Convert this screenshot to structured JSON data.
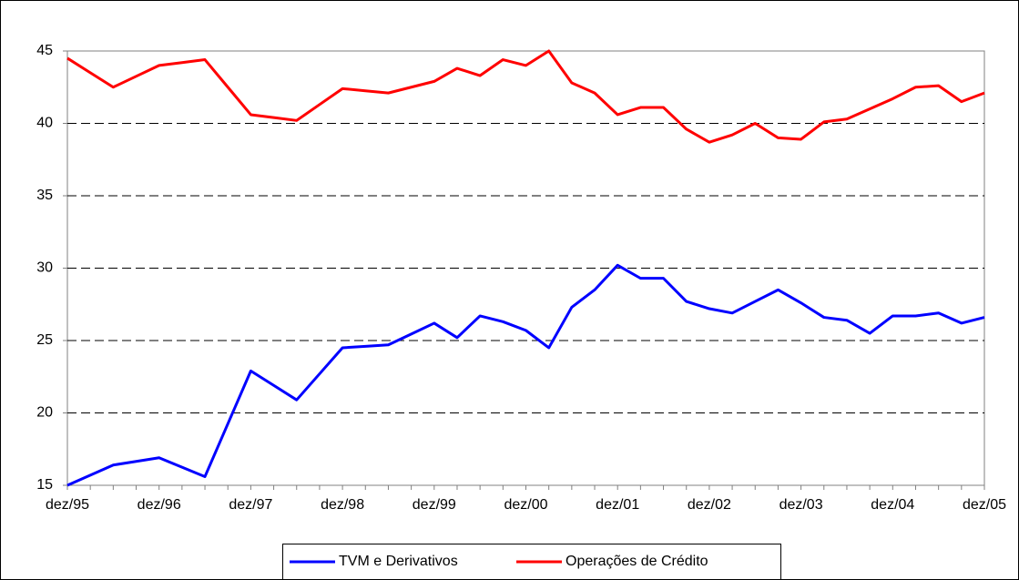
{
  "chart_data": {
    "type": "line",
    "categories": [
      "dez/95",
      null,
      null,
      null,
      "dez/96",
      null,
      null,
      null,
      "dez/97",
      null,
      null,
      null,
      "dez/98",
      null,
      null,
      null,
      "dez/99",
      null,
      null,
      null,
      "dez/00",
      null,
      null,
      null,
      "dez/01",
      null,
      null,
      null,
      "dez/02",
      null,
      null,
      null,
      "dez/03",
      null,
      null,
      null,
      "dez/04",
      null,
      null,
      null,
      "dez/05"
    ],
    "series": [
      {
        "name": "TVM e Derivativos",
        "color": "#0000ff",
        "values": [
          15,
          15.7,
          16.4,
          16.65,
          16.9,
          16.25,
          15.6,
          19.25,
          22.9,
          21.9,
          20.9,
          22.7,
          24.5,
          24.6,
          24.7,
          25.45,
          26.2,
          25.2,
          26.7,
          26.3,
          25.7,
          24.5,
          27.3,
          28.5,
          30.2,
          29.3,
          29.3,
          27.7,
          27.2,
          26.9,
          27.7,
          28.5,
          27.6,
          26.6,
          26.4,
          25.5,
          26.7,
          26.7,
          26.9,
          26.2,
          26.6
        ]
      },
      {
        "name": "Operações de Crédito",
        "color": "#ff0000",
        "values": [
          44.5,
          43.5,
          42.5,
          43.25,
          44,
          44.2,
          44.4,
          42.5,
          40.6,
          40.4,
          40.2,
          41.3,
          42.4,
          42.25,
          42.1,
          42.5,
          42.9,
          43.8,
          43.3,
          44.4,
          44,
          45,
          42.8,
          42.1,
          40.6,
          41.1,
          41.1,
          39.6,
          38.7,
          39.2,
          40,
          39,
          38.9,
          40.1,
          40.3,
          41,
          41.7,
          42.5,
          42.6,
          41.5,
          42.1
        ]
      }
    ],
    "ylim": [
      15,
      45
    ],
    "yticks": [
      15,
      20,
      25,
      30,
      35,
      40,
      45
    ],
    "grid": true,
    "legend": "bottom"
  }
}
